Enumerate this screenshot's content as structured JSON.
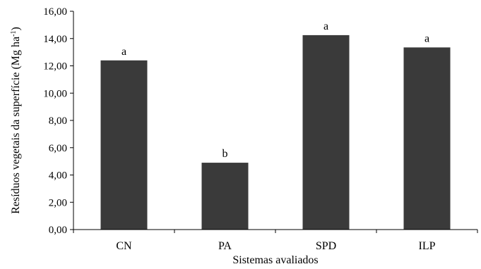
{
  "chart_data": {
    "type": "bar",
    "categories": [
      "CN",
      "PA",
      "SPD",
      "ILP"
    ],
    "values": [
      12.4,
      4.9,
      14.25,
      13.35
    ],
    "data_labels": [
      "a",
      "b",
      "a",
      "a"
    ],
    "xlabel": "Sistemas avaliados",
    "ylabel": "Resíduos vegetais da superfície (Mg ha",
    "ylabel_sup": "-1",
    "ylabel_end": ")",
    "ylim": [
      0,
      16
    ],
    "yticks": [
      "0,00",
      "2,00",
      "4,00",
      "6,00",
      "8,00",
      "10,00",
      "12,00",
      "14,00",
      "16,00"
    ],
    "bar_color": "#3a3a3a",
    "grid": false,
    "legend": "none"
  }
}
